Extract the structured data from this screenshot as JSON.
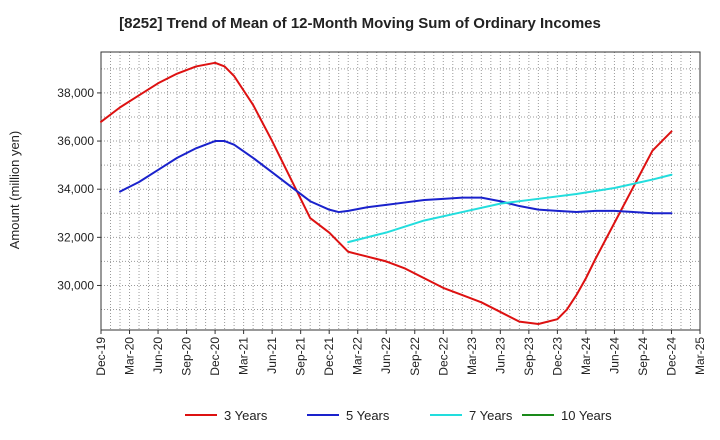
{
  "chart_data": {
    "type": "line",
    "title": "[8252]  Trend of Mean of 12-Month Moving Sum of Ordinary Incomes",
    "xlabel": "",
    "ylabel": "Amount (million yen)",
    "x_tick_labels": [
      "Dec-19",
      "Mar-20",
      "Jun-20",
      "Sep-20",
      "Dec-20",
      "Mar-21",
      "Jun-21",
      "Sep-21",
      "Dec-21",
      "Mar-22",
      "Jun-22",
      "Sep-22",
      "Dec-22",
      "Mar-23",
      "Jun-23",
      "Sep-23",
      "Dec-23",
      "Mar-24",
      "Jun-24",
      "Sep-24",
      "Dec-24",
      "Mar-25"
    ],
    "y_ticks": [
      30000,
      32000,
      34000,
      36000,
      38000
    ],
    "y_tick_labels": [
      "30,000",
      "32,000",
      "34,000",
      "36,000",
      "38,000"
    ],
    "ylim": [
      28150,
      39700
    ],
    "x_range_months": [
      0,
      63
    ],
    "grid": true,
    "legend_position": "bottom",
    "series": [
      {
        "name": "3 Years",
        "color": "#dd1111",
        "x_months": [
          0,
          2,
          4,
          6,
          8,
          10,
          12,
          13,
          14,
          15,
          16,
          18,
          20,
          22,
          24,
          26,
          27,
          28,
          29,
          30,
          32,
          34,
          36,
          38,
          40,
          42,
          44,
          46,
          48,
          49,
          50,
          51,
          52,
          54,
          56,
          58,
          60
        ],
        "values": [
          36800,
          37400,
          37900,
          38400,
          38800,
          39100,
          39250,
          39100,
          38700,
          38100,
          37500,
          36000,
          34400,
          32800,
          32200,
          31400,
          31300,
          31200,
          31100,
          31000,
          30700,
          30300,
          29900,
          29600,
          29300,
          28900,
          28500,
          28400,
          28600,
          29000,
          29600,
          30300,
          31100,
          32600,
          34100,
          35600,
          36400
        ]
      },
      {
        "name": "5 Years",
        "color": "#1a22cc",
        "x_months": [
          2,
          4,
          6,
          8,
          10,
          12,
          13,
          14,
          16,
          18,
          20,
          22,
          24,
          25,
          26,
          28,
          30,
          32,
          34,
          36,
          38,
          40,
          42,
          44,
          46,
          48,
          50,
          52,
          54,
          56,
          58,
          60
        ],
        "values": [
          33900,
          34300,
          34800,
          35300,
          35700,
          36000,
          36000,
          35850,
          35300,
          34700,
          34100,
          33500,
          33150,
          33050,
          33100,
          33250,
          33350,
          33450,
          33550,
          33600,
          33650,
          33650,
          33500,
          33300,
          33150,
          33100,
          33050,
          33100,
          33100,
          33050,
          33000,
          33000
        ]
      },
      {
        "name": "7 Years",
        "color": "#22dddd",
        "x_months": [
          26,
          30,
          34,
          38,
          42,
          46,
          50,
          54,
          58,
          60
        ],
        "values": [
          31800,
          32200,
          32700,
          33050,
          33400,
          33600,
          33800,
          34050,
          34400,
          34600
        ]
      },
      {
        "name": "10 Years",
        "color": "#1a8a1a",
        "x_months": [],
        "values": []
      }
    ]
  }
}
